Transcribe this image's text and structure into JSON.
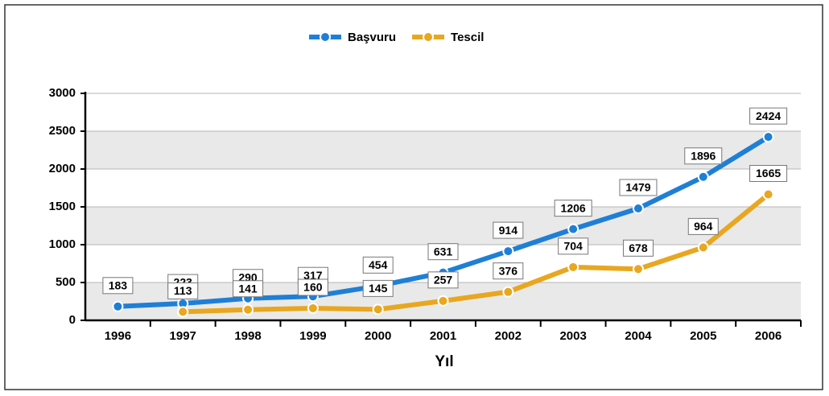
{
  "chart_data": {
    "type": "line",
    "x_label": "Yıl",
    "categories": [
      "1996",
      "1997",
      "1998",
      "1999",
      "2000",
      "2001",
      "2002",
      "2003",
      "2004",
      "2005",
      "2006"
    ],
    "series": [
      {
        "name": "Başvuru",
        "color": "#1f7fd6",
        "values": [
          183,
          223,
          290,
          317,
          454,
          631,
          914,
          1206,
          1479,
          1896,
          2424
        ]
      },
      {
        "name": "Tescil",
        "color": "#e8a71f",
        "values": [
          null,
          113,
          141,
          160,
          145,
          257,
          376,
          704,
          678,
          964,
          1665
        ]
      }
    ],
    "ylim": [
      0,
      3000
    ],
    "yticks": [
      0,
      500,
      1000,
      1500,
      2000,
      2500,
      3000
    ],
    "grid": true,
    "legend": "top"
  }
}
